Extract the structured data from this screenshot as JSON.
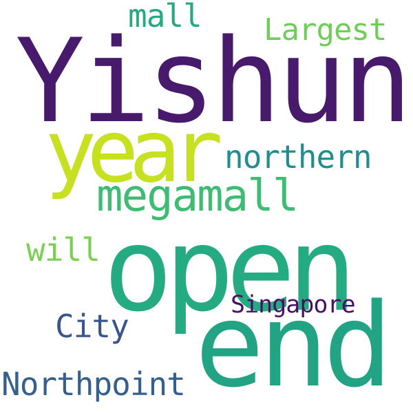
{
  "words": {
    "yishun": {
      "text": "Yishun",
      "color": "#481a6c"
    },
    "open": {
      "text": "open",
      "color": "#25ab82"
    },
    "end": {
      "text": "end",
      "color": "#22a384"
    },
    "year": {
      "text": "year",
      "color": "#c7e020"
    },
    "megamall": {
      "text": "megamall",
      "color": "#3ebc73"
    },
    "northern": {
      "text": "northern",
      "color": "#218e8d"
    },
    "largest": {
      "text": "Largest",
      "color": "#6ece58"
    },
    "mall": {
      "text": "mall",
      "color": "#27a882"
    },
    "will": {
      "text": "will",
      "color": "#7ad151"
    },
    "city": {
      "text": "City",
      "color": "#3a548c"
    },
    "singapore": {
      "text": "Singapore",
      "color": "#471164"
    },
    "northpoint": {
      "text": "Northpoint",
      "color": "#355f8d"
    }
  }
}
